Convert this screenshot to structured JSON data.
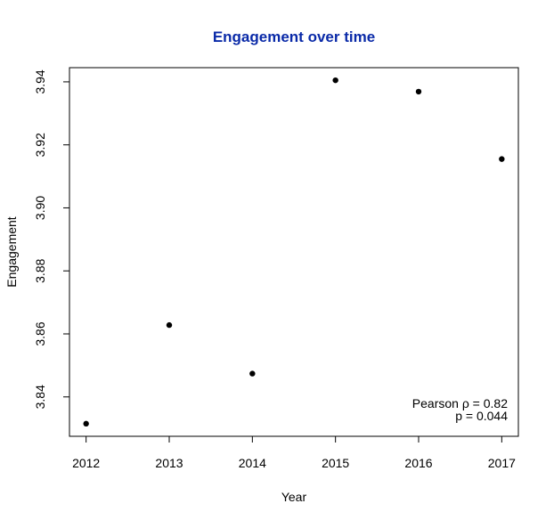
{
  "chart_data": {
    "type": "scatter",
    "title": "Engagement over time",
    "xlabel": "Year",
    "ylabel": "Engagement",
    "x": [
      2012,
      2013,
      2014,
      2015,
      2016,
      2017
    ],
    "y": [
      3.8315,
      3.8628,
      3.8474,
      3.9405,
      3.9369,
      3.9155
    ],
    "x_ticks": [
      "2012",
      "2013",
      "2014",
      "2015",
      "2016",
      "2017"
    ],
    "y_ticks": [
      "3.84",
      "3.86",
      "3.88",
      "3.90",
      "3.92",
      "3.94"
    ],
    "xlim": [
      2011.8,
      2017.2
    ],
    "ylim": [
      3.8275,
      3.9445
    ],
    "grid": false,
    "annotations": [
      "Pearson ρ = 0.82",
      "p = 0.044"
    ],
    "colors": {
      "title": "#0a2aa8",
      "points": "#000000",
      "axes": "#000000"
    }
  }
}
